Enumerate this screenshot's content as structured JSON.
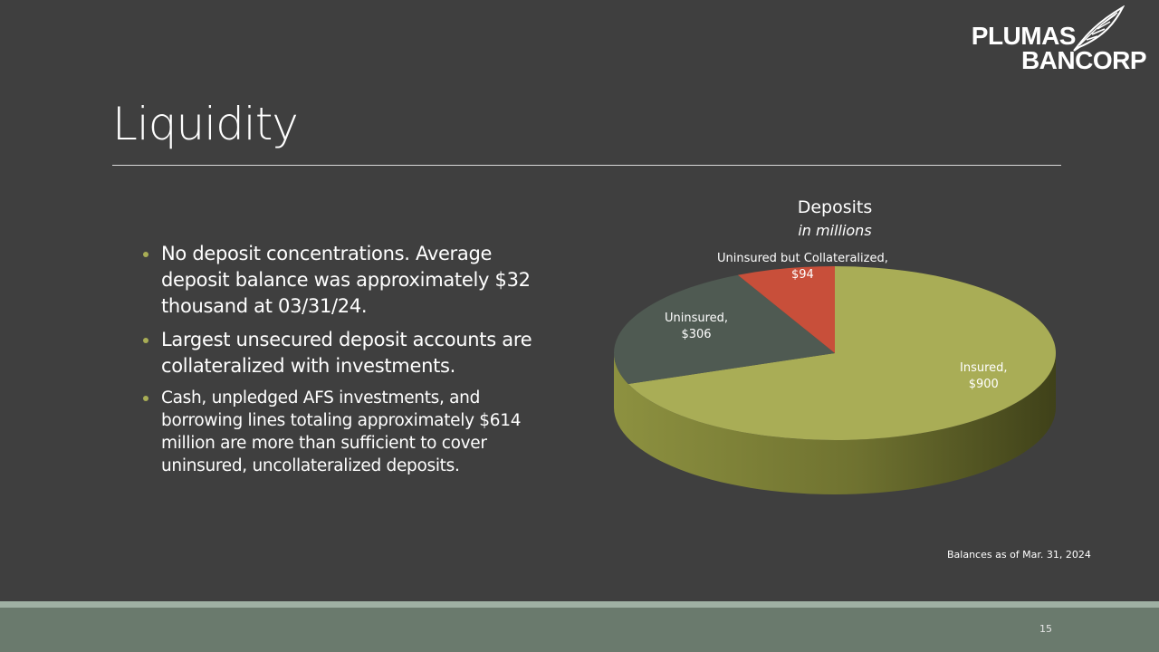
{
  "logo": {
    "line1": "PLUMAS",
    "line2": "BANCORP"
  },
  "slide": {
    "title": "Liquidity",
    "bullets": [
      "No deposit concentrations. Average deposit balance was approximately $32 thousand at 03/31/24.",
      "Largest unsecured deposit accounts are collateralized with investments.",
      "Cash, unpledged AFS investments, and borrowing lines totaling approximately $614 million are more than sufficient to cover uninsured, uncollateralized deposits."
    ],
    "footnote": "Balances as of Mar. 31, 2024",
    "page_number": "15"
  },
  "chart_data": {
    "type": "pie",
    "title": "Deposits",
    "subtitle": "in millions",
    "slices": [
      {
        "label": "Insured,",
        "value_label": "$900",
        "value": 900,
        "color": "#a9ad56"
      },
      {
        "label": "Uninsured,",
        "value_label": "$306",
        "value": 306,
        "color": "#4f5a52"
      },
      {
        "label": "Uninsured but Collateralized,",
        "value_label": "$94",
        "value": 94,
        "color": "#c84f3a"
      }
    ],
    "style": "3d"
  },
  "colors": {
    "background": "#3f3f3f",
    "bullet_accent": "#a8ad55",
    "footer_band": "#6a7a6d"
  }
}
